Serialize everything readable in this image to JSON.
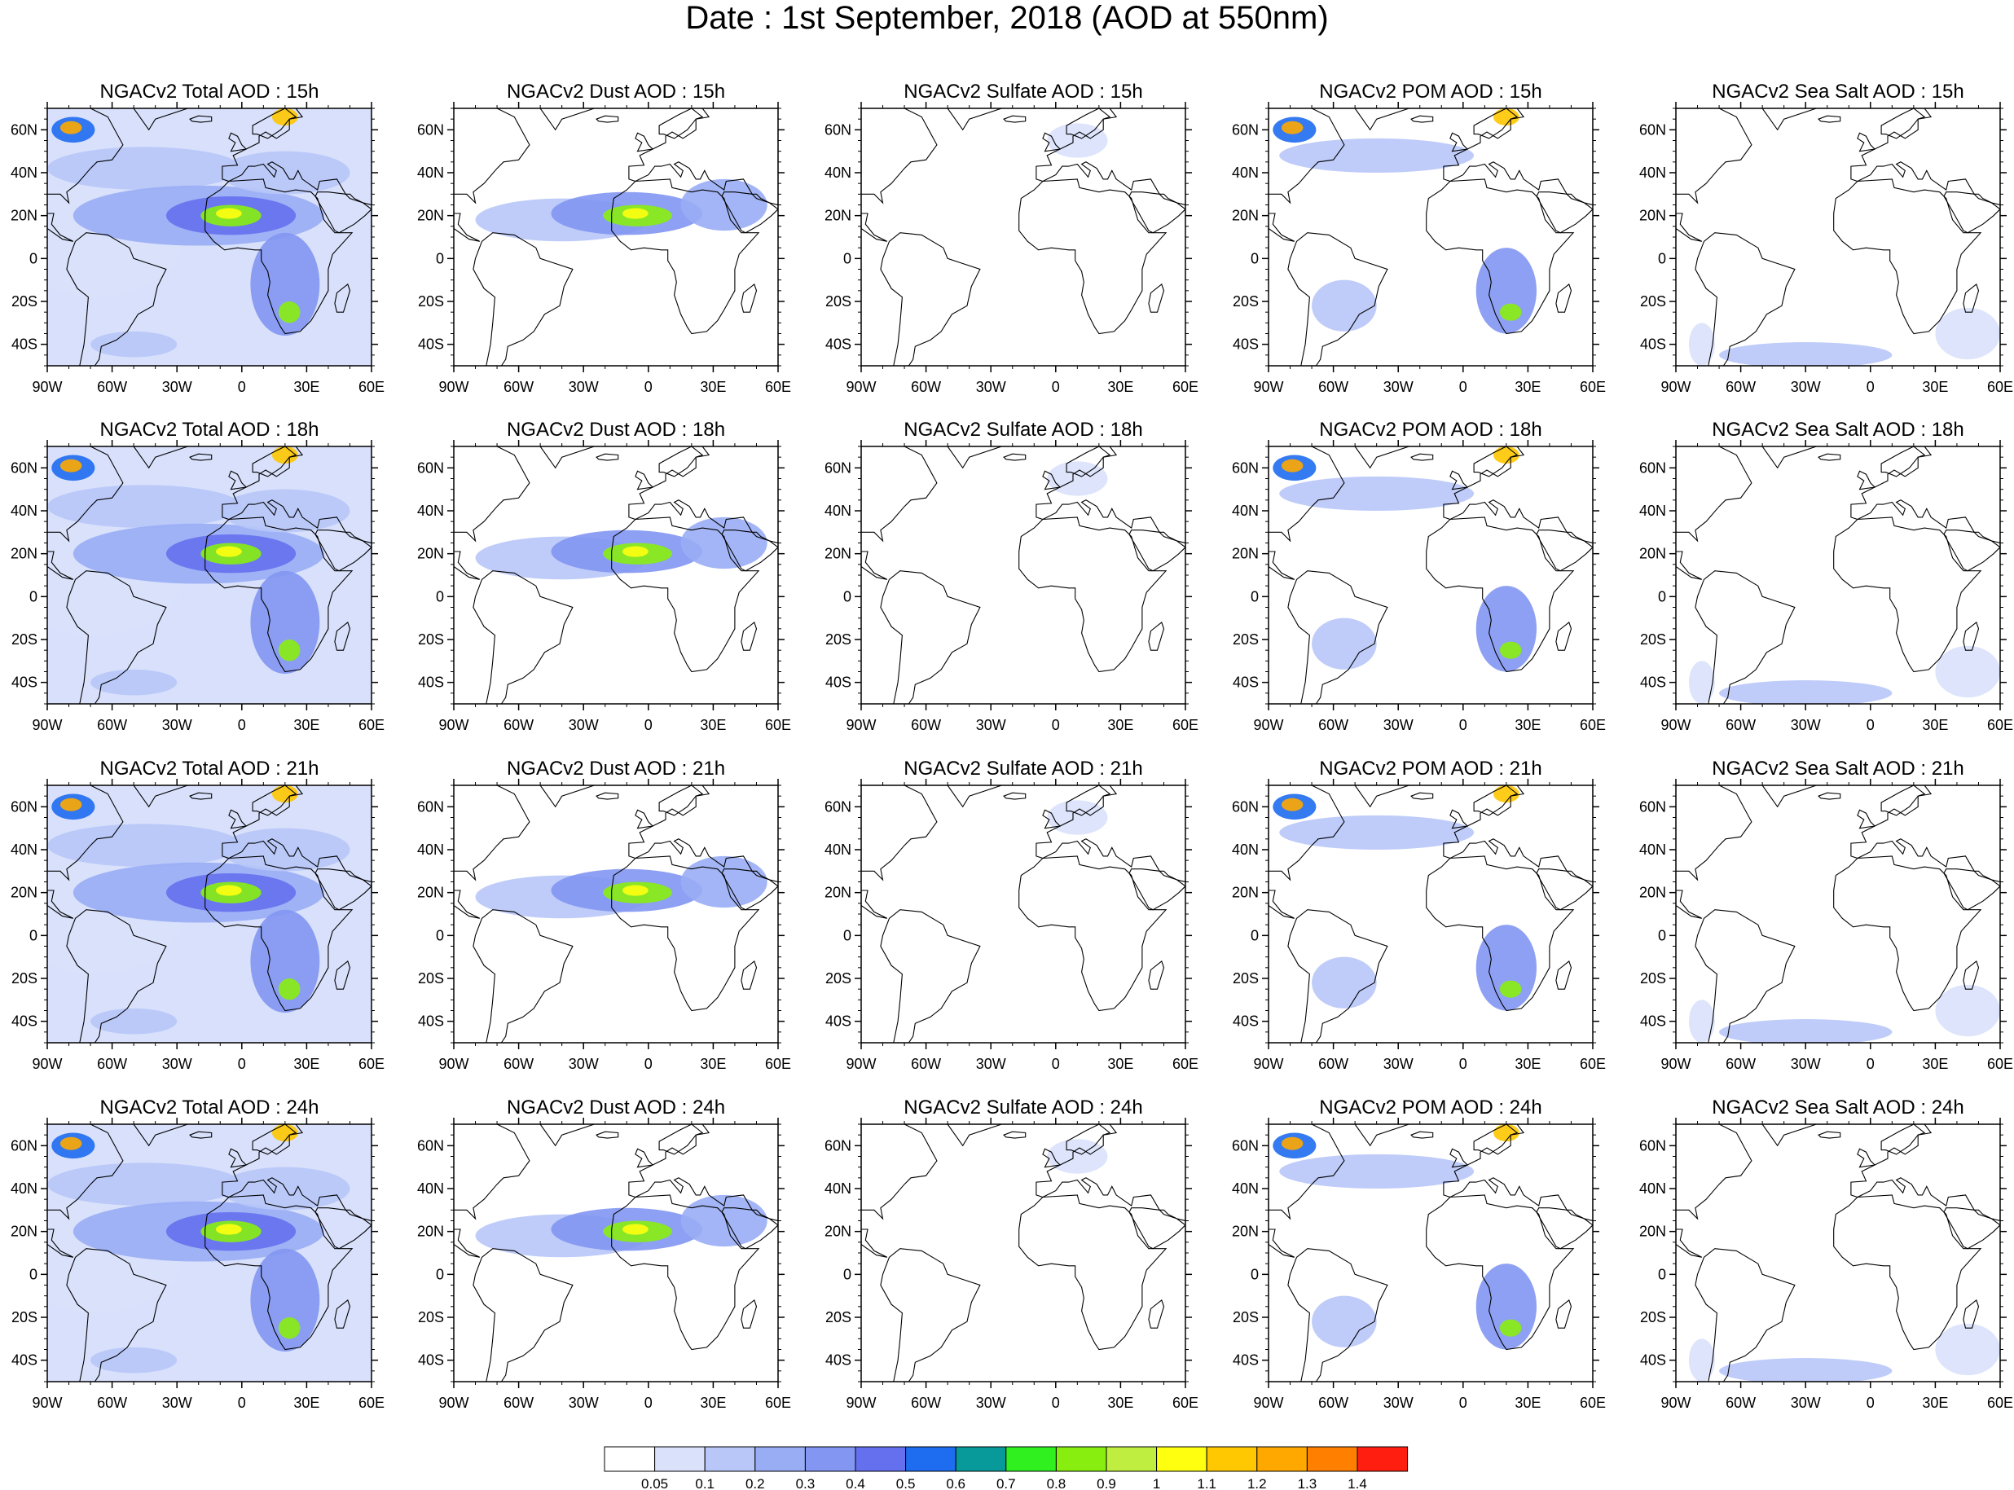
{
  "title": "Date : 1st September, 2018 (AOD at 550nm)",
  "columns": [
    {
      "id": "total",
      "label": "NGACv2 Total AOD"
    },
    {
      "id": "dust",
      "label": "NGACv2 Dust AOD"
    },
    {
      "id": "sulfate",
      "label": "NGACv2 Sulfate AOD"
    },
    {
      "id": "pom",
      "label": "NGACv2 POM AOD"
    },
    {
      "id": "seasalt",
      "label": "NGACv2 Sea Salt AOD"
    }
  ],
  "panel_titles": [
    [
      "NGACv2 Total AOD : 15h",
      "NGACv2 Dust AOD : 15h",
      "NGACv2 Sulfate AOD : 15h",
      "NGACv2 POM AOD : 15h",
      "NGACv2 Sea Salt AOD : 15h"
    ],
    [
      "NGACv2 Total AOD : 18h",
      "NGACv2 Dust AOD : 18h",
      "NGACv2 Sulfate AOD : 18h",
      "NGACv2 POM AOD : 18h",
      "NGACv2 Sea Salt AOD : 18h"
    ],
    [
      "NGACv2 Total AOD : 21h",
      "NGACv2 Dust AOD : 21h",
      "NGACv2 Sulfate AOD : 21h",
      "NGACv2 POM AOD : 21h",
      "NGACv2 Sea Salt AOD : 21h"
    ],
    [
      "NGACv2 Total AOD : 24h",
      "NGACv2 Dust AOD : 24h",
      "NGACv2 Sulfate AOD : 24h",
      "NGACv2 POM AOD : 24h",
      "NGACv2 Sea Salt  AOD : 24h"
    ]
  ],
  "map_extent": {
    "lon": [
      -90,
      60
    ],
    "lat": [
      -50,
      70
    ]
  },
  "lat_ticks": [
    {
      "value": 60,
      "label": "60N"
    },
    {
      "value": 40,
      "label": "40N"
    },
    {
      "value": 20,
      "label": "20N"
    },
    {
      "value": 0,
      "label": "0"
    },
    {
      "value": -20,
      "label": "20S"
    },
    {
      "value": -40,
      "label": "40S"
    }
  ],
  "lon_ticks": [
    {
      "value": -90,
      "label": "90W"
    },
    {
      "value": -60,
      "label": "60W"
    },
    {
      "value": -30,
      "label": "30W"
    },
    {
      "value": 0,
      "label": "0"
    },
    {
      "value": 30,
      "label": "30E"
    },
    {
      "value": 60,
      "label": "60E"
    }
  ],
  "colorbar": {
    "colors": [
      "#ffffff",
      "#d9e1fb",
      "#b8c7f8",
      "#99adf5",
      "#8296f2",
      "#6570ee",
      "#1e6cf0",
      "#089a9a",
      "#30f020",
      "#88ee10",
      "#c0ee40",
      "#ffff10",
      "#ffc800",
      "#ffa800",
      "#ff8000",
      "#ff1e10"
    ],
    "levels": [
      "0.05",
      "0.1",
      "0.2",
      "0.3",
      "0.4",
      "0.5",
      "0.6",
      "0.7",
      "0.8",
      "0.9",
      "1",
      "1.1",
      "1.2",
      "1.3",
      "1.4"
    ]
  },
  "plumes": {
    "total": [
      {
        "lon": -68,
        "lat": 8,
        "rlon": 40,
        "rlat": 26,
        "level": 1
      },
      {
        "lon": -45,
        "lat": 42,
        "rlon": 45,
        "rlat": 10,
        "level": 2
      },
      {
        "lon": -20,
        "lat": 20,
        "rlon": 58,
        "rlat": 14,
        "level": 3
      },
      {
        "lon": -5,
        "lat": 20,
        "rlon": 30,
        "rlat": 9,
        "level": 5
      },
      {
        "lon": -5,
        "lat": 20,
        "rlon": 14,
        "rlat": 5,
        "level": 9
      },
      {
        "lon": -6,
        "lat": 21,
        "rlon": 6,
        "rlat": 2.5,
        "level": 11
      },
      {
        "lon": 20,
        "lat": -12,
        "rlon": 16,
        "rlat": 24,
        "level": 4
      },
      {
        "lon": 22,
        "lat": -25,
        "rlon": 5,
        "rlat": 5,
        "level": 9
      },
      {
        "lon": -78,
        "lat": 60,
        "rlon": 10,
        "rlat": 6,
        "level": 6
      },
      {
        "lon": -79,
        "lat": 61,
        "rlon": 5,
        "rlat": 3,
        "level": 13
      },
      {
        "lon": 20,
        "lat": 66,
        "rlon": 6,
        "rlat": 4,
        "level": 12
      },
      {
        "lon": -50,
        "lat": -40,
        "rlon": 20,
        "rlat": 6,
        "level": 2
      },
      {
        "lon": 20,
        "lat": 40,
        "rlon": 30,
        "rlat": 10,
        "level": 2
      }
    ],
    "dust": [
      {
        "lon": -40,
        "lat": 18,
        "rlon": 40,
        "rlat": 10,
        "level": 2
      },
      {
        "lon": -10,
        "lat": 21,
        "rlon": 35,
        "rlat": 10,
        "level": 4
      },
      {
        "lon": -5,
        "lat": 20,
        "rlon": 16,
        "rlat": 5,
        "level": 9
      },
      {
        "lon": -6,
        "lat": 21,
        "rlon": 6,
        "rlat": 2.5,
        "level": 11
      },
      {
        "lon": 35,
        "lat": 25,
        "rlon": 20,
        "rlat": 12,
        "level": 3
      }
    ],
    "sulfate": [
      {
        "lon": 10,
        "lat": 55,
        "rlon": 14,
        "rlat": 8,
        "level": 1
      }
    ],
    "pom": [
      {
        "lon": -78,
        "lat": 60,
        "rlon": 10,
        "rlat": 6,
        "level": 6
      },
      {
        "lon": -79,
        "lat": 61,
        "rlon": 5,
        "rlat": 3,
        "level": 13
      },
      {
        "lon": -40,
        "lat": 48,
        "rlon": 45,
        "rlat": 8,
        "level": 2
      },
      {
        "lon": 20,
        "lat": 66,
        "rlon": 6,
        "rlat": 4,
        "level": 12
      },
      {
        "lon": 20,
        "lat": -15,
        "rlon": 14,
        "rlat": 20,
        "level": 4
      },
      {
        "lon": 22,
        "lat": -25,
        "rlon": 5,
        "rlat": 4,
        "level": 9
      },
      {
        "lon": -55,
        "lat": -22,
        "rlon": 15,
        "rlat": 12,
        "level": 2
      }
    ],
    "seasalt": [
      {
        "lon": -30,
        "lat": -45,
        "rlon": 40,
        "rlat": 6,
        "level": 2
      },
      {
        "lon": 45,
        "lat": -35,
        "rlon": 15,
        "rlat": 12,
        "level": 1
      },
      {
        "lon": -78,
        "lat": -40,
        "rlon": 6,
        "rlat": 10,
        "level": 1
      }
    ]
  }
}
